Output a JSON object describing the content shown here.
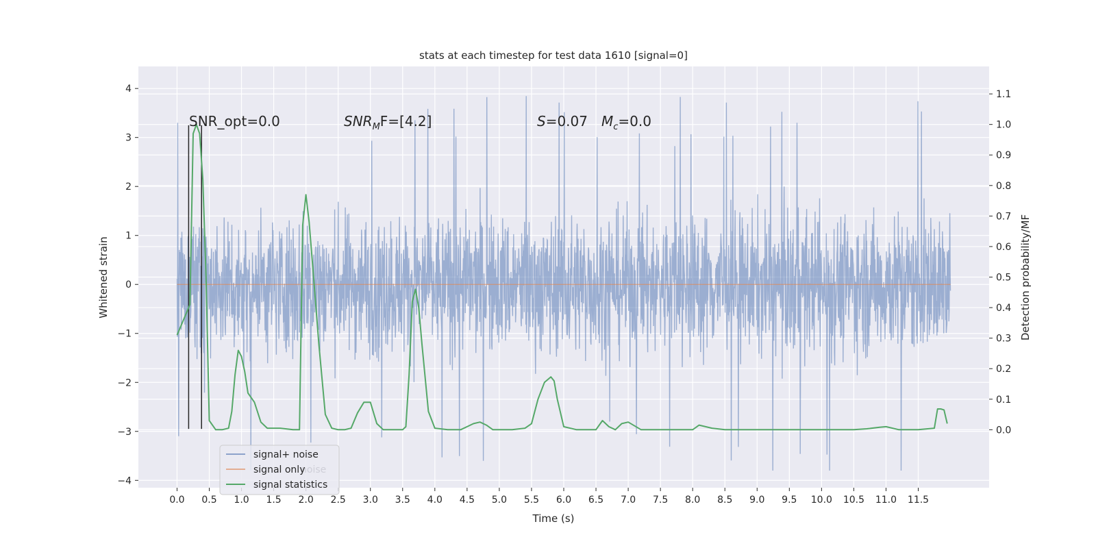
{
  "chart_data": {
    "type": "line",
    "title": "stats at each timestep for test data 1610 [signal=0]",
    "xlabel": "Time (s)",
    "ylabel": "Whitened strain",
    "y2label": "Detection probability/MF",
    "xlim": [
      -0.6,
      12.6
    ],
    "ylim": [
      -4.15,
      4.45
    ],
    "y2lim": [
      -0.19,
      1.19
    ],
    "xticks": [
      "0.0",
      "0.5",
      "1.0",
      "1.5",
      "2.0",
      "2.5",
      "3.0",
      "3.5",
      "4.0",
      "4.5",
      "5.0",
      "5.5",
      "6.0",
      "6.5",
      "7.0",
      "7.5",
      "8.0",
      "8.5",
      "9.0",
      "9.5",
      "10.0",
      "10.5",
      "11.0",
      "11.5"
    ],
    "yticks": [
      "4",
      "3",
      "2",
      "1",
      "0",
      "−1",
      "−2",
      "−3",
      "−4"
    ],
    "y2ticks": [
      "1.1",
      "1.0",
      "0.9",
      "0.8",
      "0.7",
      "0.6",
      "0.5",
      "0.4",
      "0.3",
      "0.2",
      "0.1",
      "0.0"
    ],
    "grid": true,
    "annotations": {
      "snr_opt": "SNR_opt=0.0",
      "snr_mf_main": "SNR",
      "snr_mf_sub": "M",
      "snr_mf_rest": "F=[4.2]",
      "s_main": "S",
      "s_rest": "=0.07",
      "mc_main": "M",
      "mc_sub": "c",
      "mc_rest": "=0.0"
    },
    "legend": {
      "placement": "lower-left",
      "entries": [
        "signal+ noise",
        "signal only",
        "signal statistics"
      ],
      "overlap_text": "noise"
    },
    "series": [
      {
        "name": "signal+ noise",
        "color": "#4c72b0",
        "style": "dense noisy trace, roughly uniform band between -2.1 and 2.2 with spikes reaching about 4.1 and -3.8",
        "x_range": [
          0.0,
          12.0
        ]
      },
      {
        "name": "signal only",
        "color": "#dd8452",
        "x": [
          0.0,
          12.0
        ],
        "y": [
          0.0,
          0.0
        ]
      },
      {
        "name": "signal statistics",
        "color": "#55a868",
        "axis": "right",
        "x": [
          0.0,
          0.1,
          0.2,
          0.25,
          0.3,
          0.35,
          0.4,
          0.45,
          0.5,
          0.6,
          0.7,
          0.8,
          0.85,
          0.9,
          0.95,
          1.0,
          1.05,
          1.1,
          1.2,
          1.3,
          1.4,
          1.6,
          1.8,
          1.9,
          1.95,
          2.0,
          2.05,
          2.1,
          2.2,
          2.3,
          2.4,
          2.5,
          2.6,
          2.7,
          2.8,
          2.9,
          3.0,
          3.1,
          3.2,
          3.3,
          3.4,
          3.5,
          3.55,
          3.6,
          3.65,
          3.7,
          3.75,
          3.8,
          3.9,
          4.0,
          4.2,
          4.4,
          4.5,
          4.6,
          4.7,
          4.8,
          4.9,
          5.0,
          5.2,
          5.4,
          5.5,
          5.6,
          5.7,
          5.8,
          5.85,
          5.9,
          6.0,
          6.2,
          6.4,
          6.5,
          6.6,
          6.7,
          6.8,
          6.9,
          7.0,
          7.2,
          7.5,
          8.0,
          8.1,
          8.3,
          8.5,
          9.0,
          9.5,
          10.0,
          10.5,
          10.7,
          10.9,
          11.0,
          11.2,
          11.5,
          11.75,
          11.8,
          11.85,
          11.9,
          11.95
        ],
        "y": [
          0.31,
          0.36,
          0.41,
          0.97,
          1.0,
          0.97,
          0.82,
          0.5,
          0.03,
          0.0,
          0.0,
          0.005,
          0.06,
          0.18,
          0.26,
          0.24,
          0.19,
          0.12,
          0.09,
          0.025,
          0.005,
          0.005,
          0.0,
          0.0,
          0.67,
          0.77,
          0.68,
          0.55,
          0.28,
          0.05,
          0.005,
          0.0,
          0.0,
          0.005,
          0.055,
          0.09,
          0.09,
          0.02,
          0.0,
          0.0,
          0.0,
          0.0,
          0.01,
          0.18,
          0.42,
          0.46,
          0.4,
          0.28,
          0.06,
          0.005,
          0.0,
          0.0,
          0.01,
          0.02,
          0.025,
          0.015,
          0.0,
          0.0,
          0.0,
          0.005,
          0.02,
          0.1,
          0.155,
          0.173,
          0.16,
          0.1,
          0.01,
          0.0,
          0.0,
          0.0,
          0.03,
          0.01,
          0.0,
          0.02,
          0.025,
          0.0,
          0.0,
          0.0,
          0.015,
          0.005,
          0.0,
          0.0,
          0.0,
          0.0,
          0.0,
          0.003,
          0.008,
          0.01,
          0.0,
          0.0,
          0.005,
          0.068,
          0.068,
          0.065,
          0.02
        ]
      }
    ],
    "markers": {
      "color": "#262626",
      "x": [
        0.18,
        0.38
      ],
      "y_from": -2.95,
      "y_to": 3.25
    }
  }
}
